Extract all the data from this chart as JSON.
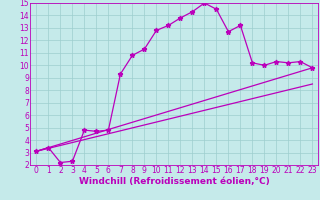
{
  "title": "",
  "xlabel": "Windchill (Refroidissement éolien,°C)",
  "xlim": [
    -0.5,
    23.5
  ],
  "ylim": [
    2,
    15
  ],
  "xticks": [
    0,
    1,
    2,
    3,
    4,
    5,
    6,
    7,
    8,
    9,
    10,
    11,
    12,
    13,
    14,
    15,
    16,
    17,
    18,
    19,
    20,
    21,
    22,
    23
  ],
  "yticks": [
    2,
    3,
    4,
    5,
    6,
    7,
    8,
    9,
    10,
    11,
    12,
    13,
    14,
    15
  ],
  "background_color": "#c5eaea",
  "grid_color": "#9ecece",
  "line_color": "#bb00bb",
  "line1_x": [
    0,
    1,
    2,
    3,
    4,
    5,
    6,
    7,
    8,
    9,
    10,
    11,
    12,
    13,
    14,
    15,
    16,
    17,
    18,
    19,
    20,
    21,
    22,
    23
  ],
  "line1_y": [
    3.1,
    3.4,
    2.2,
    2.3,
    4.8,
    4.7,
    4.8,
    9.3,
    10.8,
    11.3,
    12.8,
    13.2,
    13.8,
    14.3,
    15.0,
    14.5,
    12.7,
    13.2,
    10.2,
    10.0,
    10.3,
    10.2,
    10.3,
    9.8
  ],
  "line2_x": [
    0,
    23
  ],
  "line2_y": [
    3.1,
    9.8
  ],
  "line3_x": [
    0,
    23
  ],
  "line3_y": [
    3.1,
    8.5
  ],
  "marker": "*",
  "markersize": 3.5,
  "linewidth": 0.9,
  "tick_fontsize": 5.5,
  "xlabel_fontsize": 6.5
}
